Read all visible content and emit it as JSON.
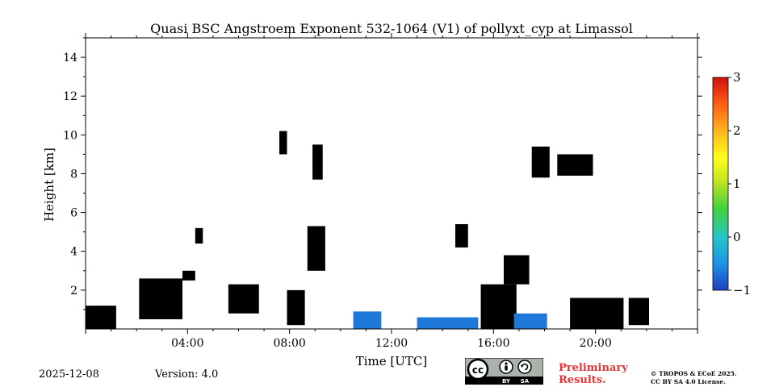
{
  "chart_data": {
    "type": "heatmap",
    "title": "Quasi BSC Angstroem Exponent 532-1064 (V1) of pollyxt_cyp at Limassol",
    "xlabel": "Time [UTC]",
    "ylabel": "Height [km]",
    "xlim_hours": [
      0,
      24
    ],
    "ylim_km": [
      0,
      15
    ],
    "x_ticks": [
      {
        "value": 4,
        "label": "04:00"
      },
      {
        "value": 8,
        "label": "08:00"
      },
      {
        "value": 12,
        "label": "12:00"
      },
      {
        "value": 16,
        "label": "16:00"
      },
      {
        "value": 20,
        "label": "20:00"
      }
    ],
    "y_ticks": [
      {
        "value": 2,
        "label": "2"
      },
      {
        "value": 4,
        "label": "4"
      },
      {
        "value": 6,
        "label": "6"
      },
      {
        "value": 8,
        "label": "8"
      },
      {
        "value": 10,
        "label": "10"
      },
      {
        "value": 12,
        "label": "12"
      },
      {
        "value": 14,
        "label": "14"
      }
    ],
    "colorbar": {
      "range": [
        -1,
        3
      ],
      "ticks": [
        {
          "value": -1,
          "label": "−1"
        },
        {
          "value": 0,
          "label": "0"
        },
        {
          "value": 1,
          "label": "1"
        },
        {
          "value": 2,
          "label": "2"
        },
        {
          "value": 3,
          "label": "3"
        }
      ],
      "colors": [
        "#1f3fbf",
        "#1e90e6",
        "#26c6c6",
        "#3fd13f",
        "#c8e61e",
        "#ffff1e",
        "#ffb41e",
        "#ff5a14",
        "#d01010"
      ]
    },
    "regions": [
      {
        "name": "black-layer",
        "color": "#000000",
        "t0": 0.0,
        "t1": 1.2,
        "h0": 0.0,
        "h1": 1.2
      },
      {
        "name": "black-layer",
        "color": "#000000",
        "t0": 2.1,
        "t1": 3.8,
        "h0": 0.5,
        "h1": 2.6
      },
      {
        "name": "black-layer",
        "color": "#000000",
        "t0": 5.6,
        "t1": 6.8,
        "h0": 0.8,
        "h1": 2.3
      },
      {
        "name": "black-layer",
        "color": "#000000",
        "t0": 7.9,
        "t1": 8.6,
        "h0": 0.2,
        "h1": 2.0
      },
      {
        "name": "black-layer",
        "color": "#000000",
        "t0": 15.5,
        "t1": 16.9,
        "h0": 0.0,
        "h1": 2.3
      },
      {
        "name": "black-layer",
        "color": "#000000",
        "t0": 19.0,
        "t1": 21.1,
        "h0": 0.0,
        "h1": 1.6
      },
      {
        "name": "black-layer",
        "color": "#000000",
        "t0": 21.3,
        "t1": 22.1,
        "h0": 0.2,
        "h1": 1.6
      },
      {
        "name": "blue-layer",
        "color": "#1e78d8",
        "t0": 10.5,
        "t1": 11.6,
        "h0": 0.0,
        "h1": 0.9
      },
      {
        "name": "blue-layer",
        "color": "#1e78d8",
        "t0": 16.8,
        "t1": 18.1,
        "h0": 0.0,
        "h1": 0.8
      },
      {
        "name": "blue-layer",
        "color": "#1e78d8",
        "t0": 13.0,
        "t1": 15.4,
        "h0": 0.0,
        "h1": 0.6
      },
      {
        "name": "cloud-layer",
        "color": "#000000",
        "t0": 18.5,
        "t1": 19.9,
        "h0": 7.9,
        "h1": 9.0
      },
      {
        "name": "cloud-layer",
        "color": "#000000",
        "t0": 17.5,
        "t1": 18.2,
        "h0": 7.8,
        "h1": 9.4
      },
      {
        "name": "cloud-layer",
        "color": "#000000",
        "t0": 8.9,
        "t1": 9.3,
        "h0": 7.7,
        "h1": 9.5
      },
      {
        "name": "cloud-layer",
        "color": "#000000",
        "t0": 7.6,
        "t1": 7.9,
        "h0": 9.0,
        "h1": 10.2
      },
      {
        "name": "aerosol-layer",
        "color": "#000000",
        "t0": 8.7,
        "t1": 9.4,
        "h0": 3.0,
        "h1": 5.3
      },
      {
        "name": "aerosol-layer",
        "color": "#000000",
        "t0": 14.5,
        "t1": 15.0,
        "h0": 4.2,
        "h1": 5.4
      },
      {
        "name": "aerosol-layer",
        "color": "#000000",
        "t0": 16.4,
        "t1": 17.4,
        "h0": 2.3,
        "h1": 3.8
      },
      {
        "name": "aerosol-layer",
        "color": "#000000",
        "t0": 3.8,
        "t1": 4.3,
        "h0": 2.5,
        "h1": 3.0
      },
      {
        "name": "aerosol-layer",
        "color": "#000000",
        "t0": 4.3,
        "t1": 4.6,
        "h0": 4.4,
        "h1": 5.2
      }
    ]
  },
  "footer": {
    "date": "2025-12-08",
    "version": "Version: 4.0",
    "preliminary_line1": "Preliminary",
    "preliminary_line2": "Results.",
    "copyright_line1": "© TROPOS & ECoE 2025.",
    "copyright_line2": "CC BY SA 4.0 License.",
    "license_by": "BY",
    "license_sa": "SA"
  }
}
